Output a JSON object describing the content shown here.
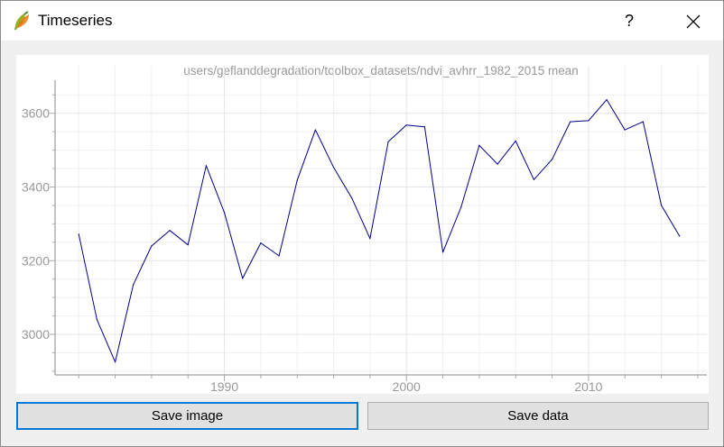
{
  "window": {
    "title": "Timeseries",
    "help_label": "?",
    "icons": {
      "app": "qgis-logo-icon",
      "close": "close-icon"
    }
  },
  "buttons": {
    "save_image": "Save image",
    "save_data": "Save data"
  },
  "colors": {
    "series": "#00008b",
    "grid": "#e4e4e4",
    "axis_text": "#999999",
    "focus": "#0078d7"
  },
  "chart_data": {
    "type": "line",
    "title": "users/geflanddegradation/toolbox_datasets/ndvi_avhrr_1982_2015 mean",
    "xlabel": "",
    "ylabel": "",
    "xlim": [
      1980.7,
      2016.5
    ],
    "ylim": [
      2890,
      3680
    ],
    "x_ticks": [
      1990,
      2000,
      2010
    ],
    "y_ticks": [
      3000,
      3200,
      3400,
      3600
    ],
    "x_tick_labels": [
      "1990",
      "2000",
      "2010"
    ],
    "y_tick_labels": [
      "3000",
      "3200",
      "3400",
      "3600"
    ],
    "grid": true,
    "series": [
      {
        "name": "mean",
        "x": [
          1982,
          1983,
          1984,
          1985,
          1986,
          1987,
          1988,
          1989,
          1990,
          1991,
          1992,
          1993,
          1994,
          1995,
          1996,
          1997,
          1998,
          1999,
          2000,
          2001,
          2002,
          2003,
          2004,
          2005,
          2006,
          2007,
          2008,
          2009,
          2010,
          2011,
          2012,
          2013,
          2014,
          2015
        ],
        "values": [
          3272,
          3040,
          2925,
          3135,
          3240,
          3282,
          3243,
          3458,
          3330,
          3152,
          3248,
          3213,
          3418,
          3555,
          3453,
          3370,
          3260,
          3523,
          3568,
          3563,
          3223,
          3345,
          3513,
          3462,
          3525,
          3420,
          3475,
          3577,
          3580,
          3637,
          3555,
          3577,
          3350,
          3267
        ]
      }
    ]
  }
}
